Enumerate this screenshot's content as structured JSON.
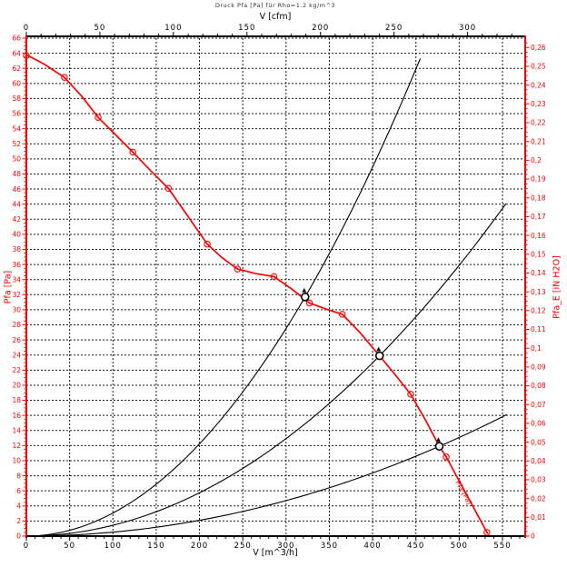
{
  "colors": {
    "accent_red": "#ff0000",
    "axis_black": "#000000",
    "grid": "#1a1a1a",
    "background": "#ffffff",
    "op_marker_fill": "#ffffff"
  },
  "chart_data": {
    "type": "line",
    "title": "Druck Pfa [Pa] für Rho=1.2 kg/m^3",
    "decimal_comma": true,
    "grid": {
      "x_step_m3h": 50,
      "y_step_pa": 2,
      "style": "dashed"
    },
    "legend_position": "none",
    "axes": {
      "top": {
        "label": "V [cfm]",
        "major_step": 50,
        "minor_step": 10,
        "max_label": 300,
        "m3h_per_unit": 1.699
      },
      "bottom": {
        "label": "V [m^3/h]",
        "min": 0,
        "max": 576,
        "major_step": 50,
        "minor_step": 10,
        "max_label": 550
      },
      "left": {
        "label": "Pfa [Pa]",
        "min": 0,
        "max": 66,
        "major_step": 2,
        "minor_step": 0.5
      },
      "right": {
        "label": "Pfa_E [iN H2O]",
        "major_step": 0.01,
        "minor_step": 0.0025,
        "max_label": 0.26,
        "pa_per_unit": 249.089
      }
    },
    "fan_curve": {
      "label": "Pfa [Pa]",
      "points": [
        [
          0,
          63.8
        ],
        [
          20,
          62.6
        ],
        [
          44,
          60.8
        ],
        [
          64,
          58.3
        ],
        [
          83,
          55.5
        ],
        [
          103,
          53.2
        ],
        [
          123,
          50.9
        ],
        [
          143,
          48.5
        ],
        [
          164,
          46.1
        ],
        [
          186,
          42.5
        ],
        [
          209,
          38.7
        ],
        [
          226,
          36.9
        ],
        [
          244,
          35.4
        ],
        [
          265,
          34.8
        ],
        [
          286,
          34.4
        ],
        [
          306,
          32.8
        ],
        [
          327,
          30.9
        ],
        [
          346,
          30.1
        ],
        [
          365,
          29.4
        ],
        [
          386,
          26.9
        ],
        [
          408,
          23.9
        ],
        [
          426,
          21.4
        ],
        [
          444,
          18.8
        ],
        [
          461,
          15.4
        ],
        [
          477,
          11.9
        ],
        [
          485,
          10.5
        ],
        [
          509,
          5.4
        ],
        [
          533,
          0.3
        ]
      ],
      "markers": [
        [
          0,
          63.7
        ],
        [
          44,
          60.8
        ],
        [
          83,
          55.5
        ],
        [
          123,
          50.9
        ],
        [
          164,
          46.1
        ],
        [
          209,
          38.7
        ],
        [
          244,
          35.4
        ],
        [
          286,
          34.4
        ],
        [
          327,
          30.9
        ],
        [
          365,
          29.4
        ],
        [
          444,
          18.8
        ],
        [
          485,
          10.5
        ],
        [
          532,
          0.5
        ]
      ]
    },
    "operating_points": [
      {
        "v": 322,
        "p": 31.7
      },
      {
        "v": 408,
        "p": 23.9
      },
      {
        "v": 477,
        "p": 11.9
      }
    ],
    "system_curves": [
      {
        "through": {
          "v": 322,
          "p": 31.7
        },
        "v_end": 455
      },
      {
        "through": {
          "v": 408,
          "p": 23.9
        },
        "v_end": 554
      },
      {
        "through": {
          "v": 477,
          "p": 11.9
        },
        "v_end": 555
      }
    ]
  }
}
